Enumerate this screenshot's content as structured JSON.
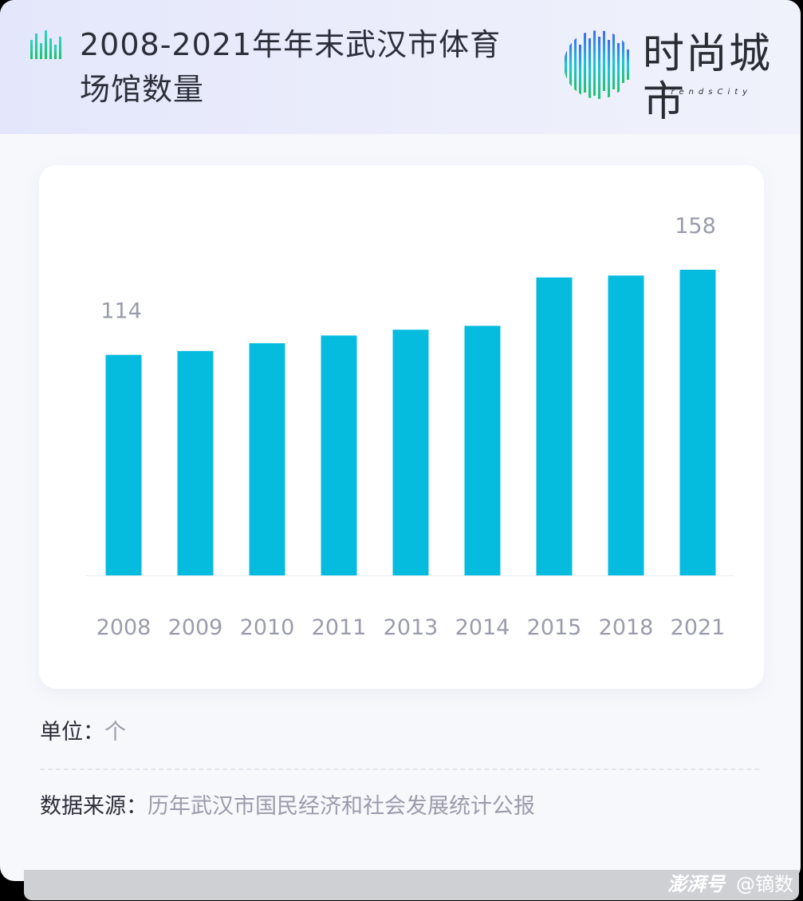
{
  "header": {
    "title": "2008-2021年年末武汉市体育场馆数量",
    "logo_text": "时尚城市",
    "logo_sub": "TrendsCity"
  },
  "footer": {
    "unit_label": "单位：",
    "unit_value": "个",
    "source_label": "数据来源：",
    "source_value": "历年武汉市国民经济和社会发展统计公报"
  },
  "watermark": {
    "brand": "澎湃号",
    "author": "@镝数"
  },
  "colors": {
    "bar": "#06bcde",
    "label": "#9a9cab",
    "baseline": "#eceef3"
  },
  "chart_data": {
    "type": "bar",
    "categories": [
      "2008",
      "2009",
      "2010",
      "2011",
      "2013",
      "2014",
      "2015",
      "2018",
      "2021"
    ],
    "values": [
      114,
      116,
      120,
      124,
      127,
      129,
      154,
      155,
      158
    ],
    "labeled_values": {
      "2008": "114",
      "2021": "158"
    },
    "title": "2008-2021年年末武汉市体育场馆数量",
    "xlabel": "",
    "ylabel": "",
    "ylim": [
      0,
      158
    ],
    "grid": false,
    "legend": "none"
  }
}
